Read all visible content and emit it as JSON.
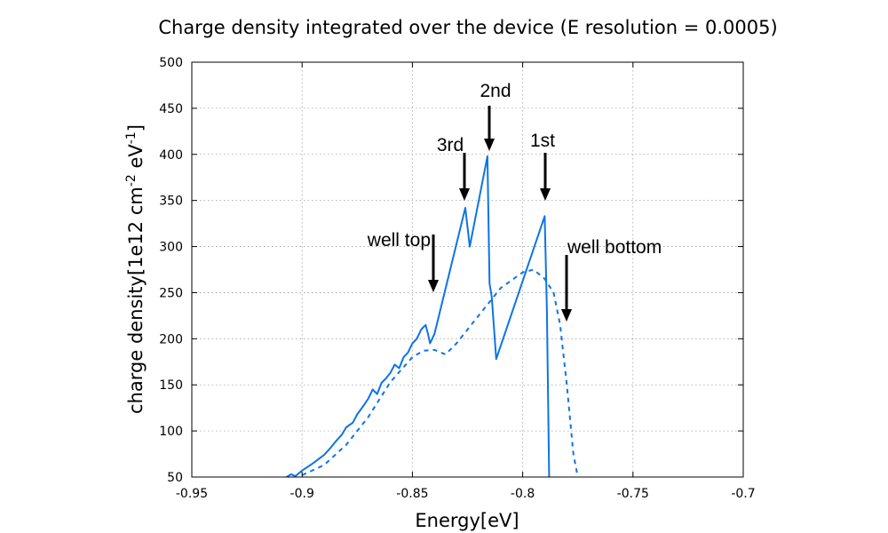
{
  "chart_data": {
    "type": "line",
    "title": "Charge density integrated over the device (E resolution = 0.0005)",
    "xlabel": "Energy[eV]",
    "ylabel": {
      "base": "charge density[1e12 cm",
      "sup1": "-2",
      "mid": " eV",
      "sup2": "-1",
      "end": "]"
    },
    "xlim": [
      -0.95,
      -0.7
    ],
    "ylim": [
      50,
      500
    ],
    "xticks": [
      "-0.95",
      "-0.9",
      "-0.85",
      "-0.8",
      "-0.75",
      "-0.7"
    ],
    "yticks": [
      "50",
      "100",
      "150",
      "200",
      "250",
      "300",
      "350",
      "400",
      "450",
      "500"
    ],
    "grid": true,
    "series_color": "#0d74e6",
    "series": [
      {
        "style": "solid",
        "points": [
          [
            -0.907,
            50
          ],
          [
            -0.905,
            53
          ],
          [
            -0.903,
            51
          ],
          [
            -0.9,
            57
          ],
          [
            -0.895,
            65
          ],
          [
            -0.89,
            74
          ],
          [
            -0.887,
            82
          ],
          [
            -0.885,
            88
          ],
          [
            -0.882,
            96
          ],
          [
            -0.88,
            104
          ],
          [
            -0.877,
            109
          ],
          [
            -0.875,
            118
          ],
          [
            -0.872,
            128
          ],
          [
            -0.87,
            135
          ],
          [
            -0.868,
            145
          ],
          [
            -0.866,
            140
          ],
          [
            -0.864,
            152
          ],
          [
            -0.862,
            157
          ],
          [
            -0.86,
            163
          ],
          [
            -0.858,
            172
          ],
          [
            -0.856,
            168
          ],
          [
            -0.854,
            180
          ],
          [
            -0.852,
            185
          ],
          [
            -0.85,
            195
          ],
          [
            -0.848,
            200
          ],
          [
            -0.846,
            210
          ],
          [
            -0.844,
            215
          ],
          [
            -0.843,
            206
          ],
          [
            -0.842,
            195
          ],
          [
            -0.84,
            205
          ],
          [
            -0.826,
            342
          ],
          [
            -0.824,
            300
          ],
          [
            -0.816,
            398
          ],
          [
            -0.815,
            260
          ],
          [
            -0.814,
            245
          ],
          [
            -0.812,
            178
          ],
          [
            -0.79,
            333
          ],
          [
            -0.789,
            230
          ],
          [
            -0.788,
            50
          ]
        ]
      },
      {
        "style": "dashed",
        "points": [
          [
            -0.9,
            52
          ],
          [
            -0.89,
            63
          ],
          [
            -0.88,
            85
          ],
          [
            -0.87,
            115
          ],
          [
            -0.86,
            153
          ],
          [
            -0.85,
            180
          ],
          [
            -0.845,
            187
          ],
          [
            -0.84,
            188
          ],
          [
            -0.835,
            183
          ],
          [
            -0.83,
            195
          ],
          [
            -0.82,
            225
          ],
          [
            -0.81,
            255
          ],
          [
            -0.8,
            272
          ],
          [
            -0.795,
            275
          ],
          [
            -0.79,
            265
          ],
          [
            -0.786,
            250
          ],
          [
            -0.783,
            215
          ],
          [
            -0.78,
            150
          ],
          [
            -0.777,
            75
          ],
          [
            -0.775,
            50
          ]
        ]
      }
    ],
    "annotations": [
      {
        "label": "2nd",
        "x": -0.816,
        "y": 398
      },
      {
        "label": "3rd",
        "x": -0.826,
        "y": 342
      },
      {
        "label": "1st",
        "x": -0.79,
        "y": 333
      },
      {
        "label": "well top",
        "x": -0.84,
        "y": 248
      },
      {
        "label": "well bottom",
        "x": -0.78,
        "y": 215
      }
    ]
  }
}
